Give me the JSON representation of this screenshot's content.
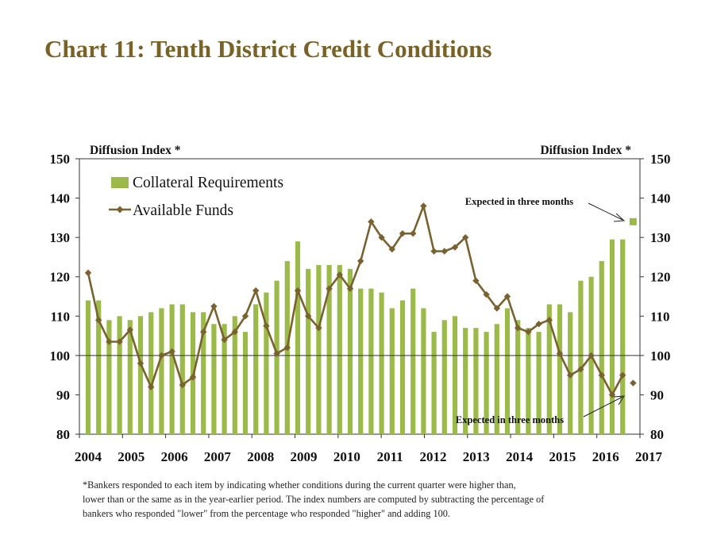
{
  "title": "Chart 11: Tenth District Credit Conditions",
  "chart_data": {
    "type": "bar+line",
    "ylabel_left": "Diffusion Index *",
    "ylabel_right": "Diffusion Index *",
    "ylim": [
      80,
      150
    ],
    "yticks": [
      80,
      90,
      100,
      110,
      120,
      130,
      140,
      150
    ],
    "x_tick_labels": [
      "2004",
      "2005",
      "2006",
      "2007",
      "2008",
      "2009",
      "2010",
      "2011",
      "2012",
      "2013",
      "2014",
      "2015",
      "2016",
      "2017"
    ],
    "baseline": 100,
    "grid": false,
    "legend_position": "top-left",
    "colors": {
      "bars": "#9cba4a",
      "line": "#7a6230",
      "text": "#111111",
      "title": "#7a6226"
    },
    "series": [
      {
        "name": "Collateral Requirements",
        "type": "bar",
        "values": [
          114,
          114,
          109,
          110,
          109,
          110,
          111,
          112,
          113,
          113,
          111,
          111,
          108,
          108,
          110,
          106,
          113,
          116,
          119,
          124,
          129,
          122,
          123,
          123,
          123,
          122,
          117,
          117,
          116,
          112,
          114,
          117,
          112,
          106,
          109,
          110,
          107,
          107,
          106,
          108,
          112,
          109,
          107,
          106,
          113,
          113,
          111,
          119,
          120,
          124,
          129.5,
          129.5
        ]
      },
      {
        "name": "Available Funds",
        "type": "line",
        "values": [
          121,
          109,
          103.5,
          103.5,
          106.5,
          98,
          92,
          100,
          101,
          92.5,
          94.5,
          106,
          112.5,
          104,
          106,
          110,
          116.5,
          107.5,
          100.5,
          102,
          116.5,
          110,
          107,
          117,
          120.5,
          117,
          124,
          134,
          130,
          127,
          131,
          131,
          138,
          126.5,
          126.5,
          127.5,
          130,
          119,
          115.5,
          112,
          115,
          107,
          106,
          108,
          109,
          100.5,
          95,
          96.5,
          100,
          95,
          90,
          95
        ]
      }
    ],
    "expected": {
      "label": "Expected in three months",
      "collateral_requirements": 134,
      "available_funds": 93
    }
  },
  "footnote": [
    "*Bankers responded to each item by indicating whether conditions during the current quarter were higher than,",
    "lower than or the same as in the year-earlier period.  The index numbers are computed by subtracting the percentage of",
    "bankers who responded \"lower\" from the percentage who responded \"higher\" and adding 100."
  ]
}
